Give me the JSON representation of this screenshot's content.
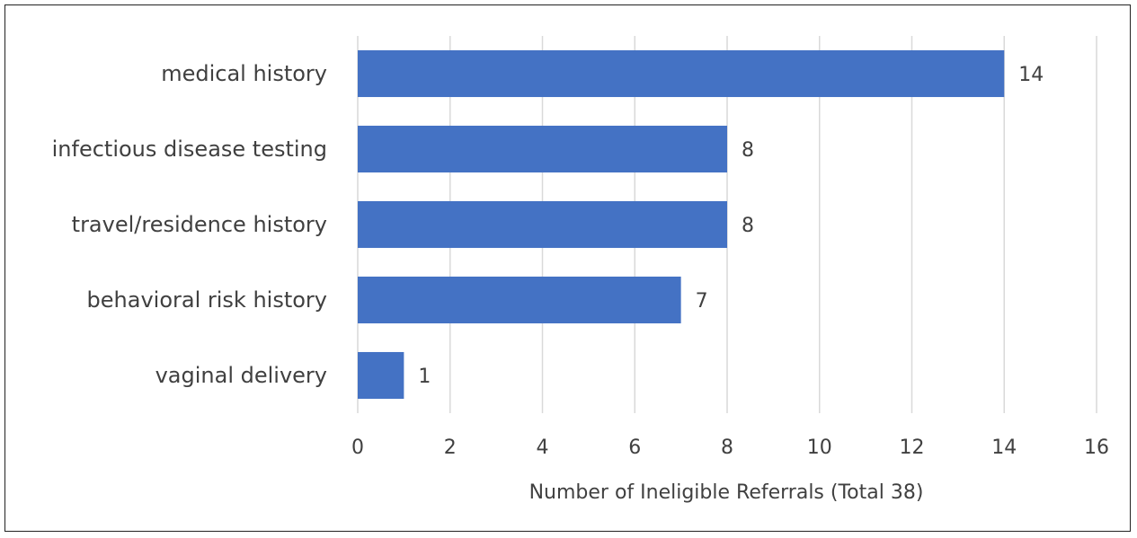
{
  "chart_data": {
    "type": "bar",
    "orientation": "horizontal",
    "categories": [
      "medical history",
      "infectious disease testing",
      "travel/residence history",
      "behavioral risk history",
      "vaginal delivery"
    ],
    "values": [
      14,
      8,
      8,
      7,
      1
    ],
    "xlabel": "Number of Ineligible Referrals (Total 38)",
    "xlim": [
      0,
      16
    ],
    "xticks": [
      0,
      2,
      4,
      6,
      8,
      10,
      12,
      14,
      16
    ],
    "data_labels": true,
    "grid": "vertical",
    "legend": "none",
    "bar_color": "#4472C4"
  }
}
